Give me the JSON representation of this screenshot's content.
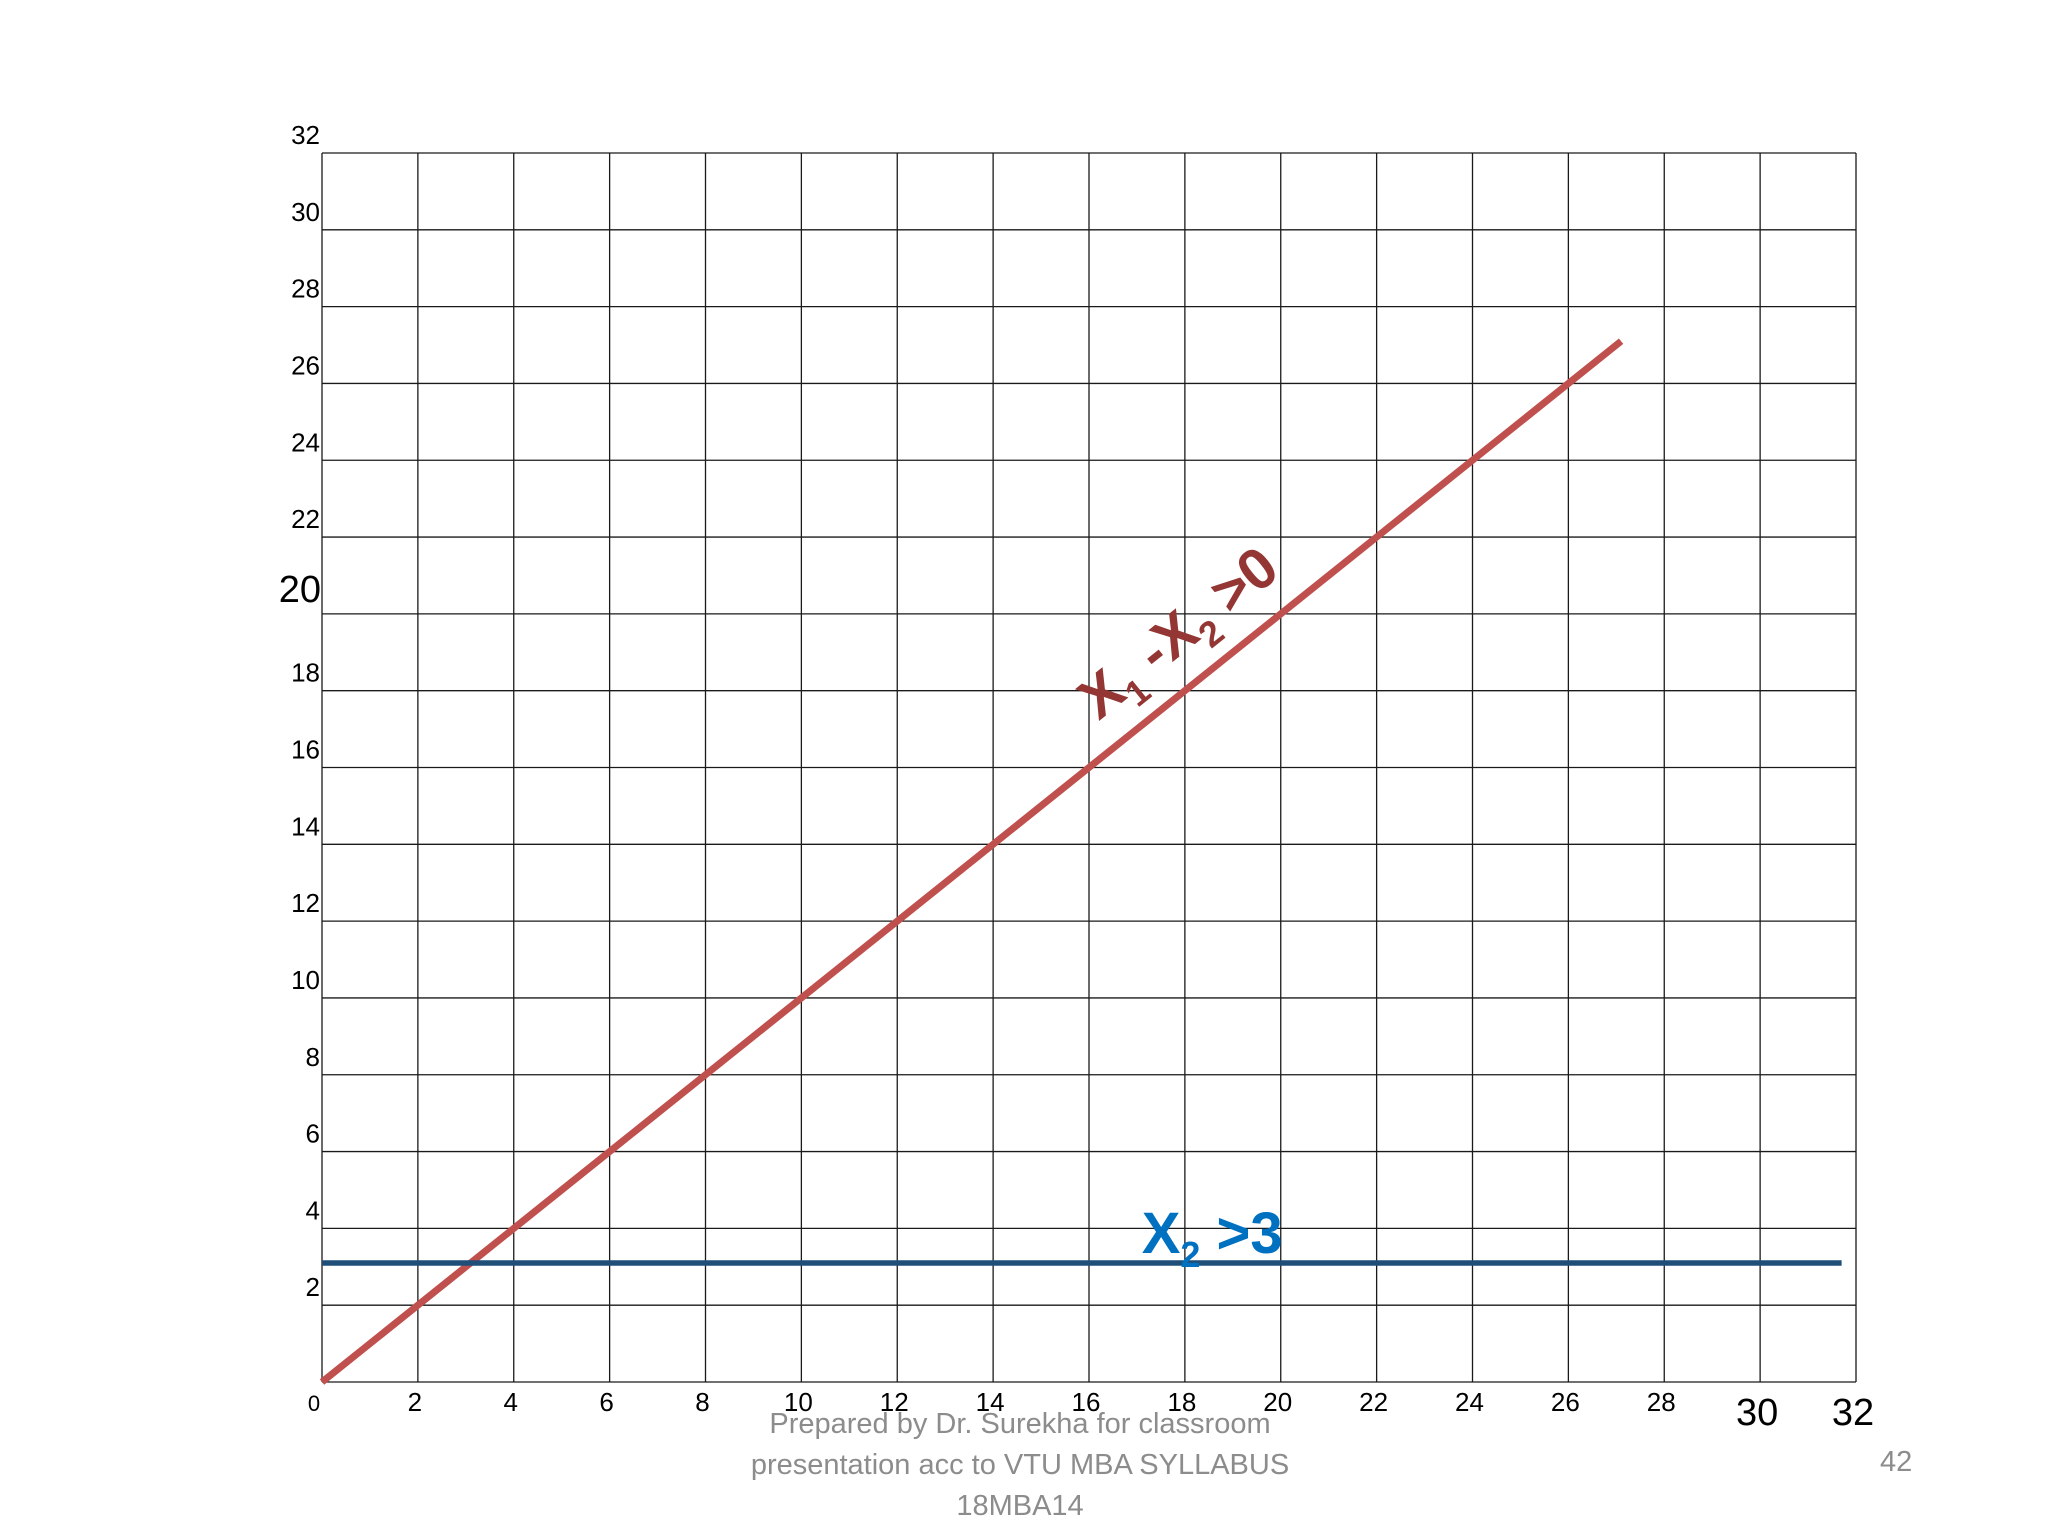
{
  "chart_data": {
    "type": "line",
    "x_ticks": [
      "0",
      "2",
      "4",
      "6",
      "8",
      "10",
      "12",
      "14",
      "16",
      "18",
      "20",
      "22",
      "24",
      "26",
      "28",
      "30",
      "32"
    ],
    "y_ticks": [
      "2",
      "4",
      "6",
      "8",
      "10",
      "12",
      "14",
      "16",
      "18",
      "20",
      "22",
      "24",
      "26",
      "28",
      "30",
      "32"
    ],
    "xlim": [
      0,
      32
    ],
    "ylim": [
      0,
      32
    ],
    "grid": true,
    "series": [
      {
        "label_main": "X",
        "label_sub1": "1",
        "label_mid": " -X",
        "label_sub2": "2",
        "label_end": " >0",
        "color": "#c0504d",
        "x": [
          0,
          27.1
        ],
        "y": [
          0,
          27.1
        ]
      },
      {
        "label_main": "X",
        "label_sub1": "2",
        "label_end": " >3",
        "color": "#1f4e79",
        "label_color": "#0070c0",
        "x": [
          0,
          31.7
        ],
        "y": [
          3.1,
          3.1
        ]
      }
    ]
  },
  "footer": {
    "line1": "Prepared by Dr. Surekha for classroom",
    "line2": "presentation acc to VTU MBA SYLLABUS",
    "line3": "18MBA14",
    "page_number": "42"
  }
}
